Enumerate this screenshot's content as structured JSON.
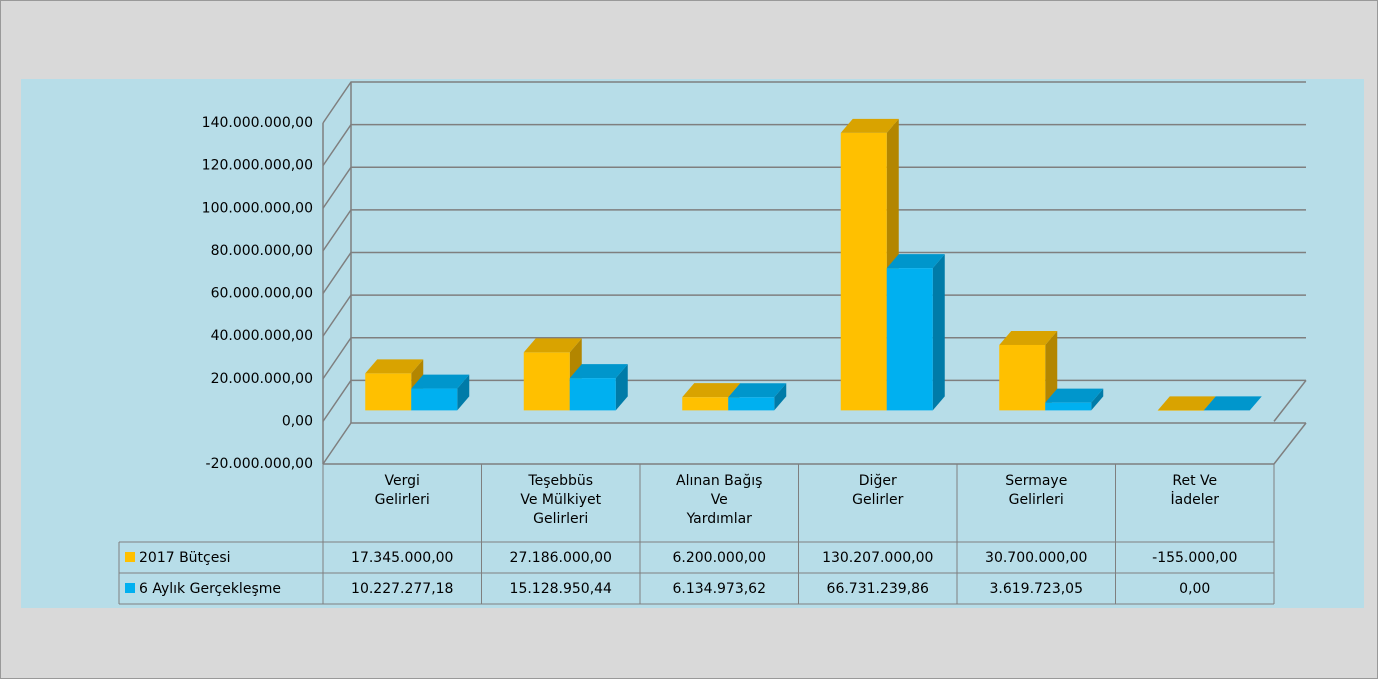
{
  "chart_data": {
    "type": "bar3d",
    "categories": [
      "Vergi\nGelirleri",
      "Teşebbüs\nVe Mülkiyet\nGelirleri",
      "Alınan Bağış\nVe\nYardımlar",
      "Diğer\nGelirler",
      "Sermaye\nGelirleri",
      "Ret Ve\nİadeler"
    ],
    "series": [
      {
        "name": "2017 Bütçesi",
        "color": "#ffc000",
        "values": [
          17345000,
          27186000,
          6200000,
          130207000,
          30700000,
          -155000
        ],
        "value_labels": [
          "17.345.000,00",
          "27.186.000,00",
          "6.200.000,00",
          "130.207.000,00",
          "30.700.000,00",
          "-155.000,00"
        ]
      },
      {
        "name": "6 Aylık Gerçekleşme",
        "color": "#00b0f0",
        "values": [
          10227277.18,
          15128950.44,
          6134973.62,
          66731239.86,
          3619723.05,
          0
        ],
        "value_labels": [
          "10.227.277,18",
          "15.128.950,44",
          "6.134.973,62",
          "66.731.239,86",
          "3.619.723,05",
          "0,00"
        ]
      }
    ],
    "ylim": [
      -20000000,
      140000000
    ],
    "yticks": [
      {
        "value": -20000000,
        "label": "-20.000.000,00"
      },
      {
        "value": 0,
        "label": "0,00"
      },
      {
        "value": 20000000,
        "label": "20.000.000,00"
      },
      {
        "value": 40000000,
        "label": "40.000.000,00"
      },
      {
        "value": 60000000,
        "label": "60.000.000,00"
      },
      {
        "value": 80000000,
        "label": "80.000.000,00"
      },
      {
        "value": 100000000,
        "label": "100.000.000,00"
      },
      {
        "value": 120000000,
        "label": "120.000.000,00"
      },
      {
        "value": 140000000,
        "label": "140.000.000,00"
      }
    ],
    "grid": true,
    "data_table": true
  }
}
